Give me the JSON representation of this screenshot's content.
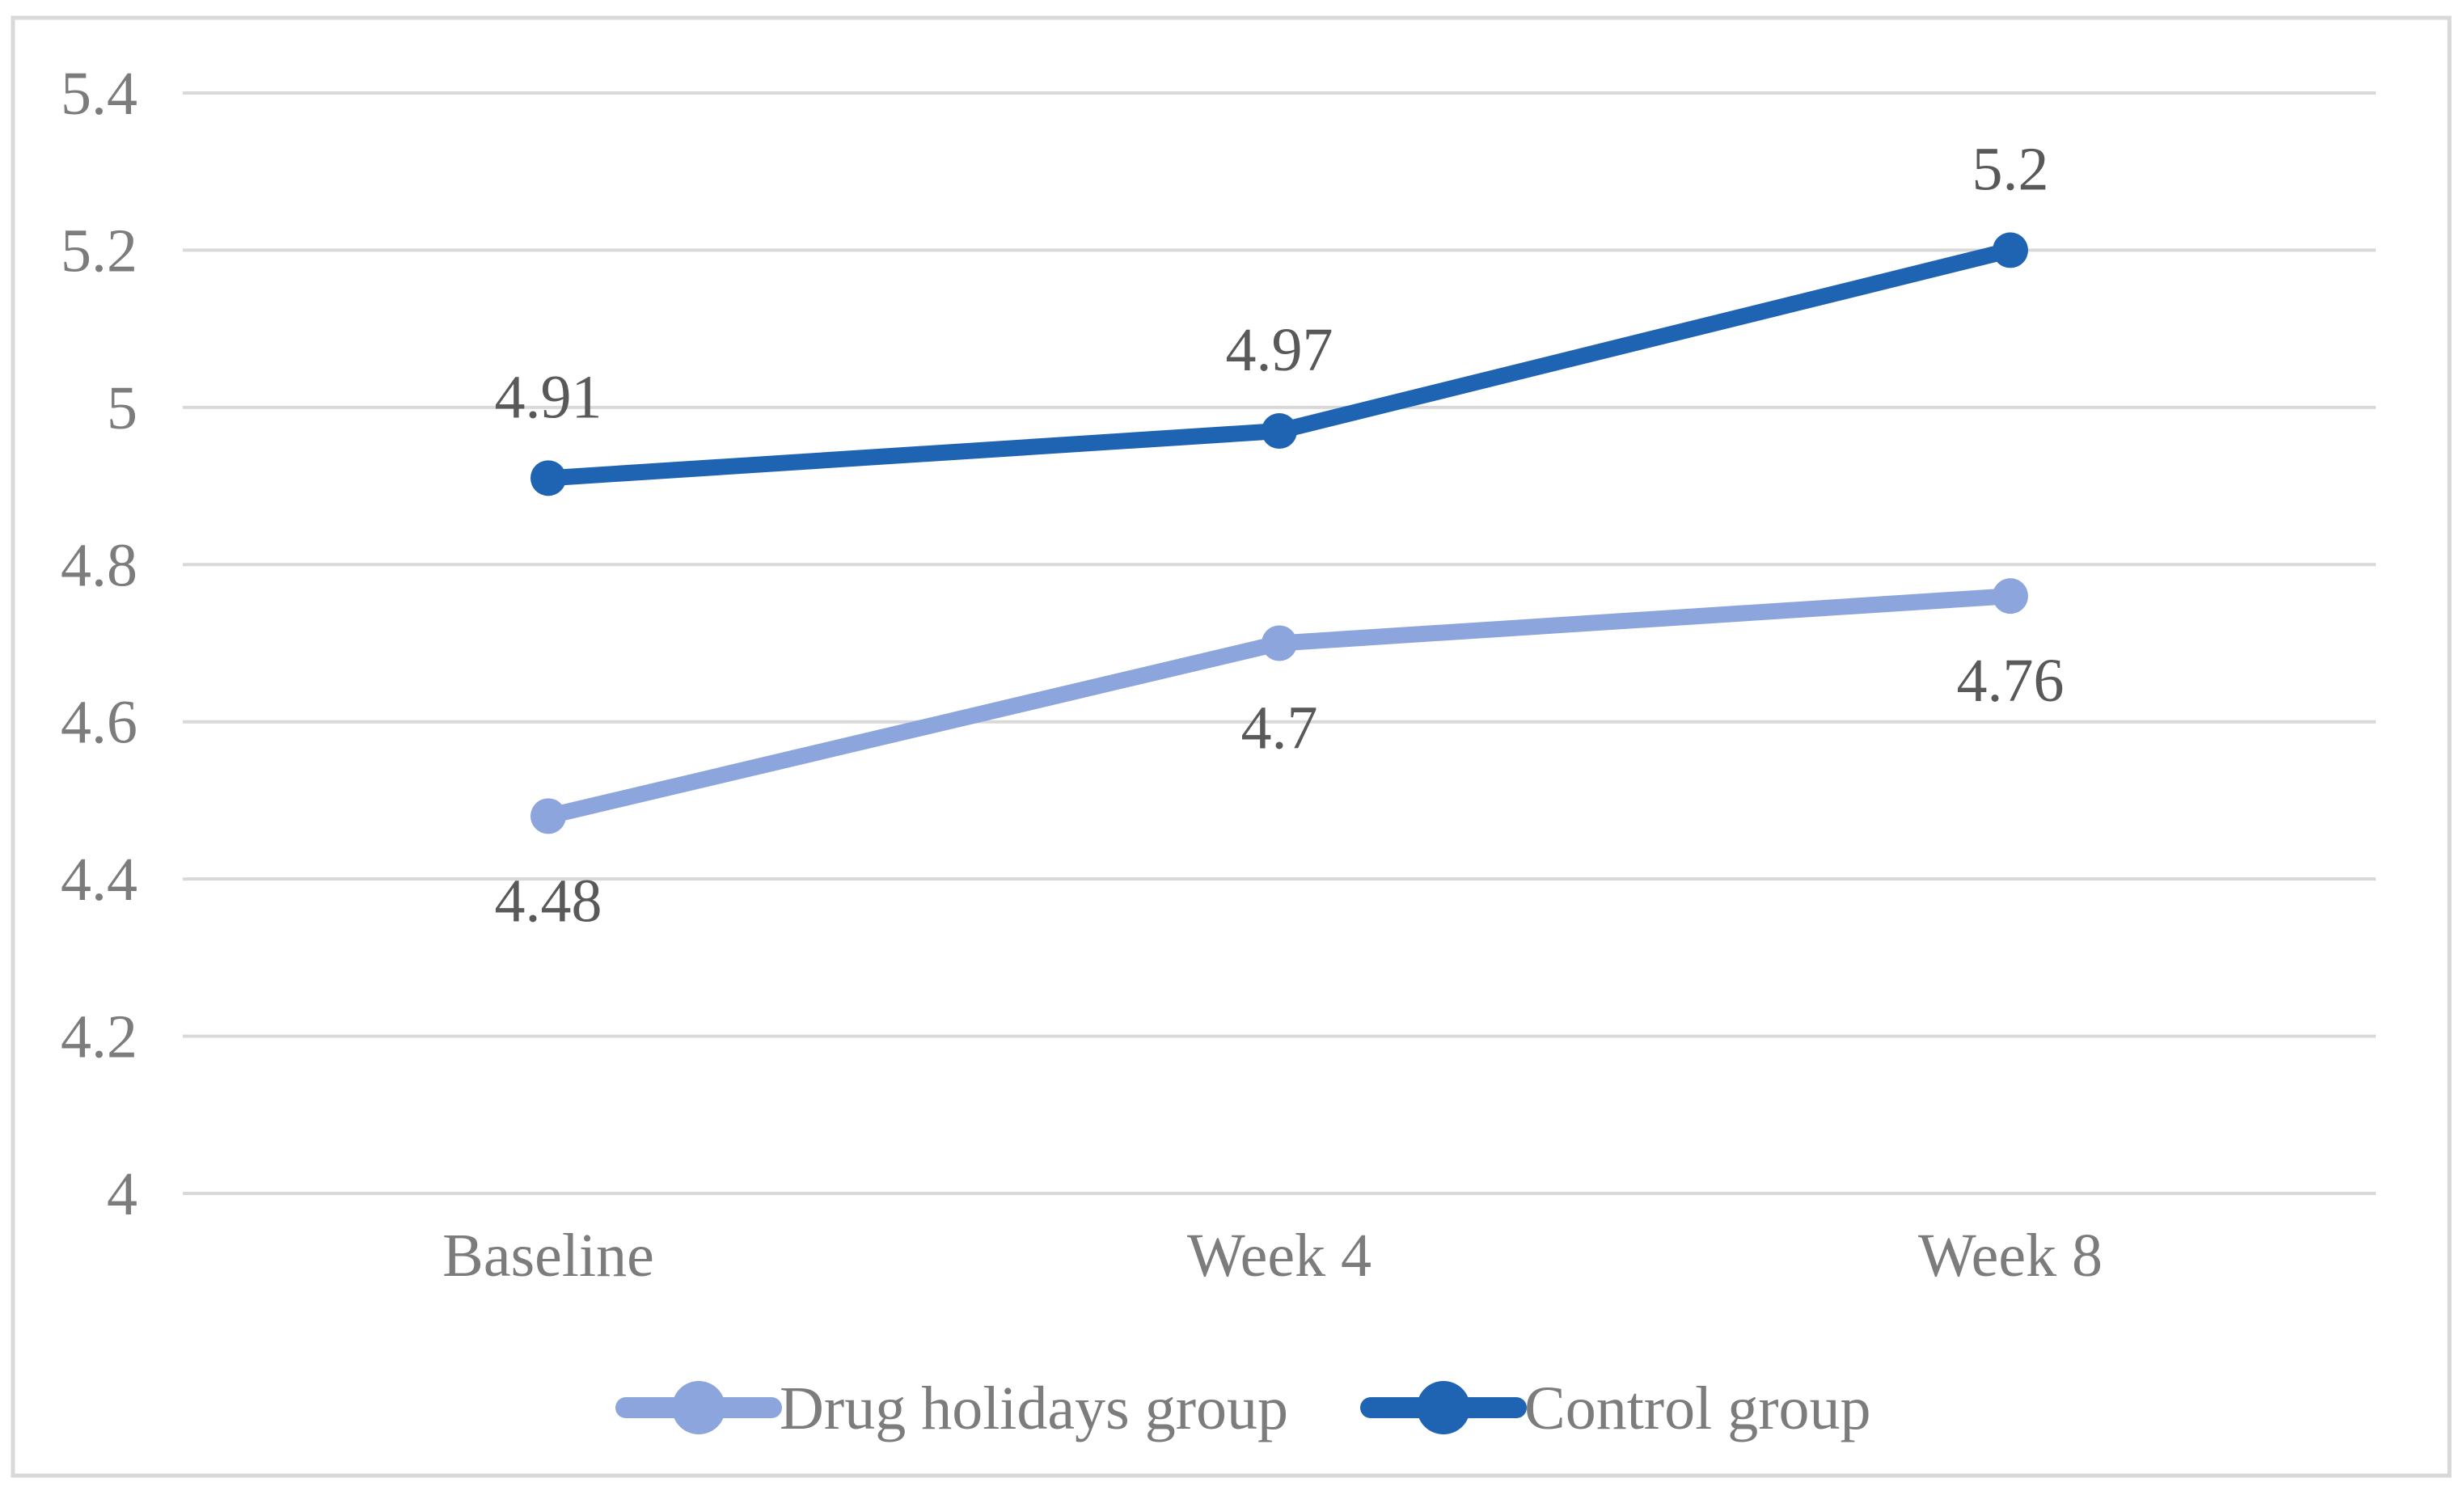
{
  "chart_data": {
    "type": "line",
    "categories": [
      "Baseline",
      "Week 4",
      "Week 8"
    ],
    "series": [
      {
        "name": "Drug holidays group",
        "values": [
          4.48,
          4.7,
          4.76
        ],
        "data_labels": [
          "4.48",
          "4.7",
          "4.76"
        ],
        "color": "#8CA5DC",
        "label_position": "below"
      },
      {
        "name": "Control group",
        "values": [
          4.91,
          4.97,
          5.2
        ],
        "data_labels": [
          "4.91",
          "4.97",
          "5.2"
        ],
        "color": "#1F64B2",
        "label_position": "above"
      }
    ],
    "y_ticks": [
      {
        "label": "5.4",
        "value": 5.4
      },
      {
        "label": "5.2",
        "value": 5.2
      },
      {
        "label": "5",
        "value": 5.0
      },
      {
        "label": "4.8",
        "value": 4.8
      },
      {
        "label": "4.6",
        "value": 4.6
      },
      {
        "label": "4.4",
        "value": 4.4
      },
      {
        "label": "4.2",
        "value": 4.2
      },
      {
        "label": "4",
        "value": 4.0
      }
    ],
    "ylim": [
      4.0,
      5.4
    ],
    "grid": true,
    "legend_position": "bottom"
  },
  "styles": {
    "background_color": "#FFFFFF",
    "border_color": "#D9D9D9",
    "gridline_color": "#D9D9D9",
    "tick_label_color": "#7C7C7C",
    "category_label_color": "#7C7C7C",
    "data_label_color": "#595959",
    "legend_text_color": "#7C7C7C"
  }
}
